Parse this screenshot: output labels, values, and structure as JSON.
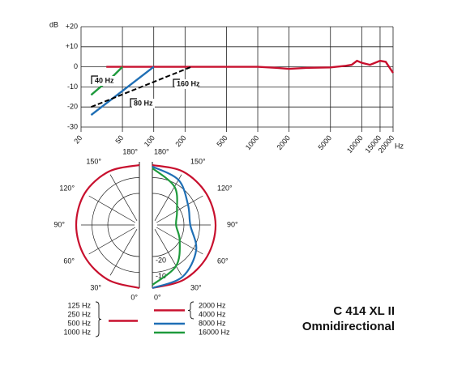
{
  "chart_data": [
    {
      "type": "line",
      "xscale": "log",
      "xlabel": "Hz",
      "ylabel": "dB",
      "xlim": [
        20,
        20000
      ],
      "ylim": [
        -30,
        20
      ],
      "xticks": [
        20,
        50,
        100,
        200,
        500,
        1000,
        2000,
        5000,
        10000,
        15000,
        20000
      ],
      "yticks": [
        {
          "value": 20,
          "label": "+20"
        },
        {
          "value": 10,
          "label": "+10"
        },
        0,
        -10,
        -20,
        -30
      ],
      "grid": true,
      "series": [
        {
          "color": "#c8102e",
          "x": [
            35,
            100,
            500,
            1000,
            1500,
            2000,
            3000,
            5000,
            7000,
            8000,
            9000,
            10000,
            12000,
            15000,
            17000,
            20000
          ],
          "values": [
            0,
            0,
            0,
            0,
            -0.5,
            -1,
            -0.5,
            -0.3,
            0.5,
            1,
            3,
            2,
            1,
            3,
            2.5,
            -3
          ]
        },
        {
          "name": "40 Hz",
          "color": "#1e9a3c",
          "x": [
            25,
            40,
            50
          ],
          "values": [
            -14,
            -5,
            0
          ]
        },
        {
          "name": "80 Hz",
          "color": "#1f6fb5",
          "x": [
            25,
            100
          ],
          "values": [
            -24,
            0
          ]
        },
        {
          "name": "160 Hz",
          "color": "#000000",
          "dash": true,
          "x": [
            25,
            230
          ],
          "values": [
            -20,
            0
          ]
        }
      ]
    },
    {
      "type": "polar",
      "rlim": [
        -40,
        0
      ],
      "rticks": [
        -20,
        -10
      ],
      "thetaticks": [
        {
          "value": 0,
          "label": "0°"
        },
        {
          "value": 30,
          "label": "30°"
        },
        {
          "value": 60,
          "label": "60°"
        },
        {
          "value": 90,
          "label": "90°"
        },
        {
          "value": 120,
          "label": "120°"
        },
        {
          "value": 150,
          "label": "150°"
        },
        {
          "value": 180,
          "label": "180°"
        }
      ],
      "series": [
        {
          "side": "left",
          "names": [
            "125 Hz",
            "250 Hz",
            "500 Hz",
            "1000 Hz"
          ],
          "color": "#c8102e",
          "theta": [
            0,
            30,
            60,
            90,
            120,
            150,
            180
          ],
          "values": [
            0,
            0,
            0,
            0,
            0,
            -1,
            -2
          ]
        },
        {
          "side": "right",
          "names": [
            "2000 Hz",
            "4000 Hz"
          ],
          "color": "#c8102e",
          "theta": [
            0,
            30,
            60,
            90,
            120,
            150,
            180
          ],
          "values": [
            0,
            0,
            0,
            0,
            -0.5,
            -1,
            -2
          ]
        },
        {
          "side": "right",
          "names": [
            "8000 Hz"
          ],
          "color": "#1f6fb5",
          "theta": [
            0,
            30,
            60,
            90,
            120,
            150,
            180
          ],
          "values": [
            0,
            -2,
            -8,
            -16,
            -14,
            -7,
            -3
          ]
        },
        {
          "side": "right",
          "names": [
            "16000 Hz"
          ],
          "color": "#1e9a3c",
          "theta": [
            0,
            30,
            60,
            90,
            120,
            150,
            180
          ],
          "values": [
            -2,
            -10,
            -20,
            -25,
            -22,
            -12,
            -4
          ]
        }
      ]
    }
  ],
  "caption": {
    "model": "C 414 XL II",
    "pattern": "Omnidirectional"
  }
}
